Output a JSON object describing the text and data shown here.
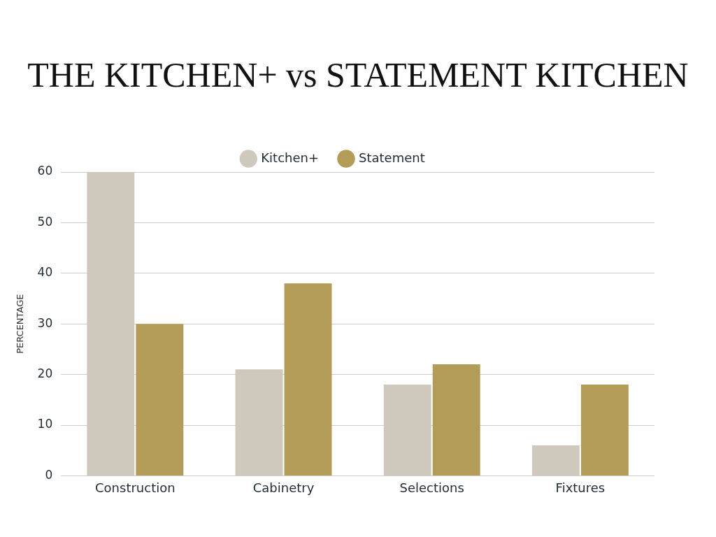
{
  "chart_data": {
    "type": "bar",
    "title": "THE KITCHEN+ vs STATEMENT KITCHEN",
    "ylabel": "PERCENTAGE",
    "categories": [
      "Construction",
      "Cabinetry",
      "Selections",
      "Fixtures"
    ],
    "series": [
      {
        "name": "Kitchen+",
        "color": "#cfc8bc",
        "values": [
          60,
          21,
          18,
          6
        ]
      },
      {
        "name": "Statement",
        "color": "#b39b58",
        "values": [
          30,
          38,
          22,
          18
        ]
      }
    ],
    "ylim": [
      0,
      60
    ],
    "yticks": [
      0,
      10,
      20,
      30,
      40,
      50,
      60
    ],
    "grid": "y",
    "legend": "top"
  }
}
